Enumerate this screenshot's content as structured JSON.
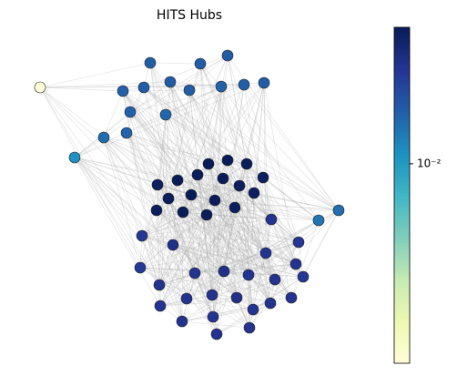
{
  "chart_data": {
    "type": "network",
    "title": "HITS Hubs",
    "values": [
      0.025,
      0.026,
      0.027,
      0.024,
      0.025,
      0.026,
      0.025,
      0.024,
      0.025,
      0.026,
      0.024,
      0.022,
      0.02,
      0.023,
      0.0003,
      0.012,
      0.018,
      0.02,
      0.11,
      0.11,
      0.105,
      0.1,
      0.11,
      0.105,
      0.11,
      0.1,
      0.105,
      0.11,
      0.105,
      0.1,
      0.1,
      0.1,
      0.11,
      0.105,
      0.1,
      0.055,
      0.05,
      0.06,
      0.052,
      0.055,
      0.05,
      0.055,
      0.055,
      0.06,
      0.055,
      0.055,
      0.05,
      0.055,
      0.055,
      0.06,
      0.055,
      0.055,
      0.055,
      0.055,
      0.055,
      0.055,
      0.055,
      0.055,
      0.055
    ],
    "colorbar": {
      "scale": "log",
      "lim": [
        0.0003,
        0.11
      ],
      "ticks": [
        {
          "value": 0.01,
          "label": "10⁻²"
        }
      ]
    }
  }
}
